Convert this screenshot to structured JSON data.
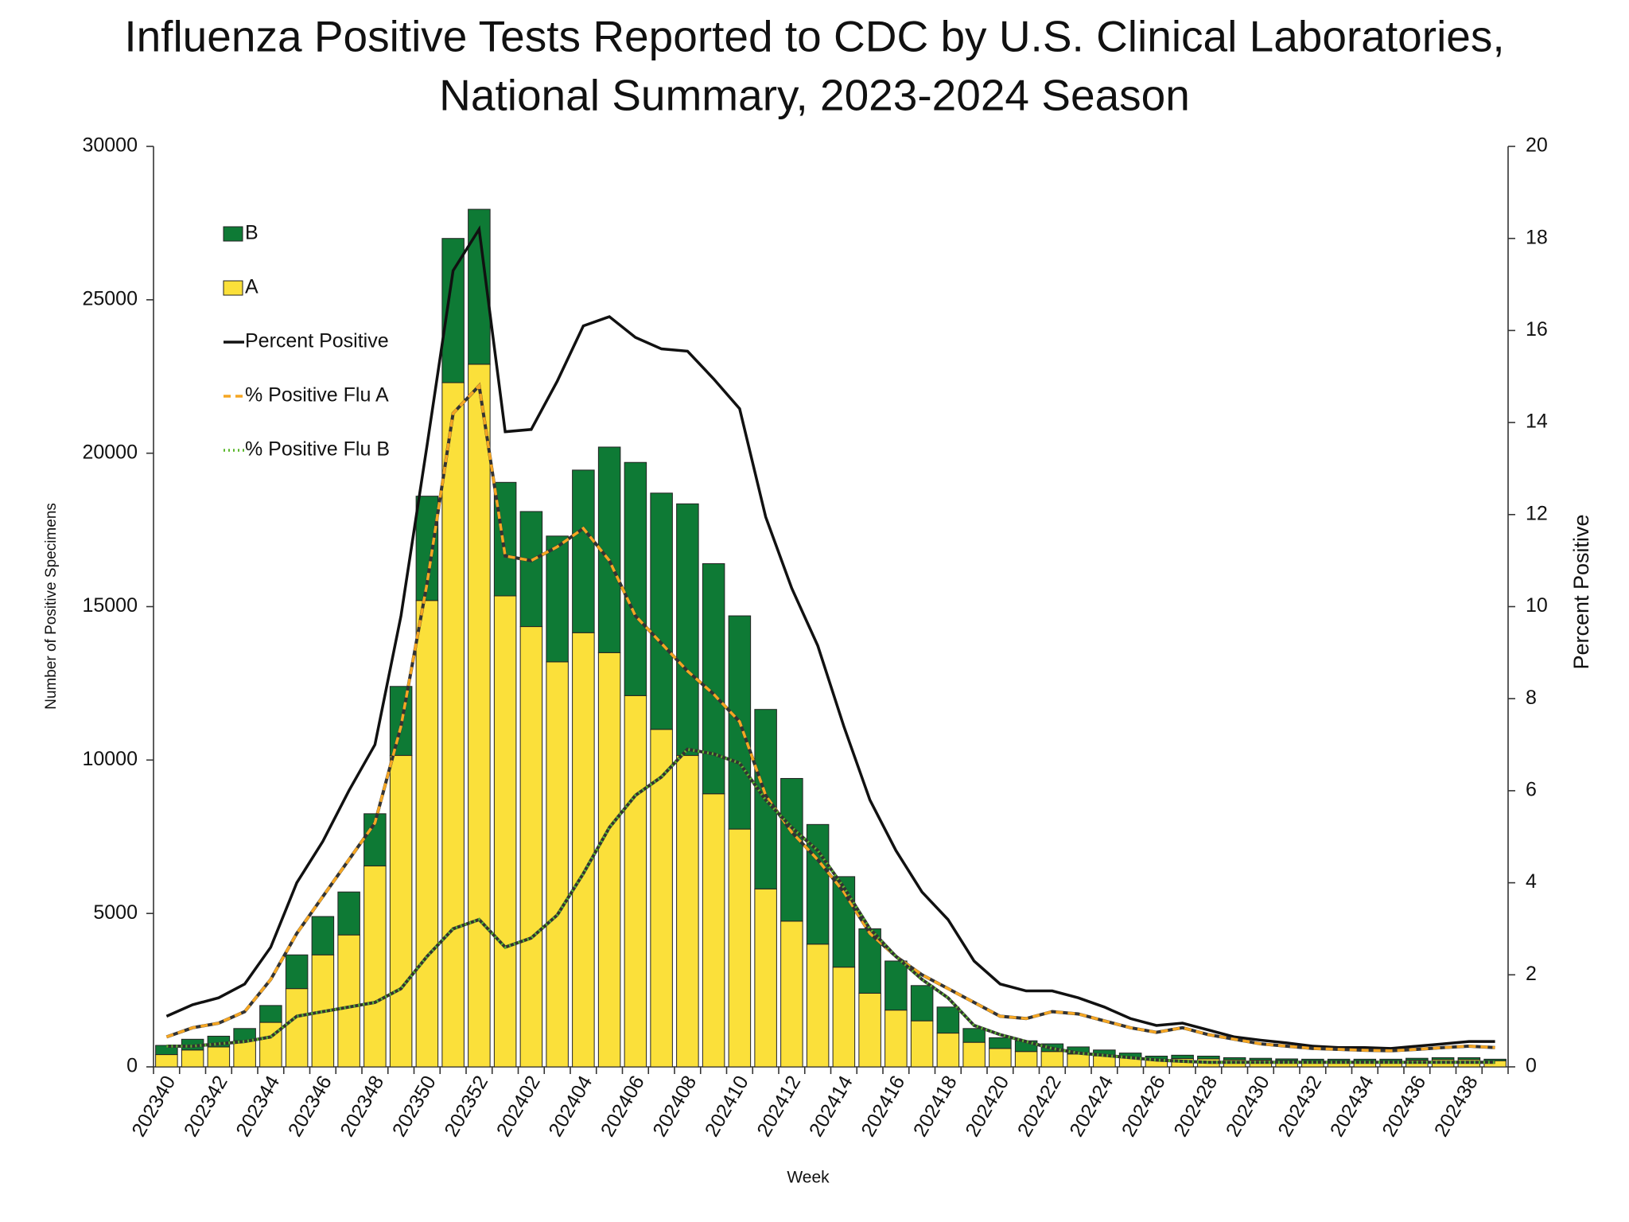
{
  "chart_data": {
    "type": "bar-line",
    "title": [
      "Influenza Positive Tests Reported to CDC by U.S. Clinical Laboratories,",
      "National Summary, 2023-2024 Season"
    ],
    "x_label": "Week",
    "y_label": "Number of Positive Specimens",
    "y2_label": "Percent Positive",
    "categories": [
      "202340",
      null,
      "202342",
      null,
      "202344",
      null,
      "202346",
      null,
      "202348",
      null,
      "202350",
      null,
      "202352",
      null,
      "202402",
      null,
      "202404",
      null,
      "202406",
      null,
      "202408",
      null,
      "202410",
      null,
      "202412",
      null,
      "202414",
      null,
      "202416",
      null,
      "202418",
      null,
      "202420",
      null,
      "202422",
      null,
      "202424",
      null,
      "202426",
      null,
      "202428",
      null,
      "202430",
      null,
      "202432",
      null,
      "202434",
      null,
      "202436",
      null,
      "202438",
      null
    ],
    "series": [
      {
        "name": "B",
        "kind": "bar",
        "color": "#0e7a35",
        "values": [
          300,
          350,
          350,
          400,
          550,
          1100,
          1250,
          1400,
          1700,
          2250,
          3400,
          4700,
          5050,
          3700,
          3750,
          4100,
          5300,
          6700,
          7600,
          7700,
          8200,
          7500,
          6950,
          5850,
          4650,
          3900,
          2950,
          2100,
          1600,
          1150,
          850,
          450,
          350,
          350,
          250,
          230,
          190,
          150,
          100,
          110,
          90,
          70,
          60,
          50,
          50,
          50,
          50,
          50,
          60,
          60,
          60,
          50
        ]
      },
      {
        "name": "A",
        "kind": "bar",
        "color": "#fbe03a",
        "values": [
          400,
          550,
          650,
          850,
          1450,
          2550,
          3650,
          4300,
          6550,
          10150,
          15200,
          22300,
          22900,
          15350,
          14350,
          13200,
          14150,
          13500,
          12100,
          11000,
          10150,
          8900,
          7750,
          5800,
          4750,
          4000,
          3250,
          2400,
          1850,
          1500,
          1100,
          800,
          600,
          500,
          500,
          420,
          360,
          300,
          250,
          270,
          260,
          230,
          220,
          210,
          200,
          200,
          200,
          200,
          220,
          240,
          240,
          200
        ]
      },
      {
        "name": "Percent Positive",
        "kind": "line",
        "axis": "y2",
        "color": "#111111",
        "dash": "none",
        "values": [
          1.1,
          1.35,
          1.5,
          1.8,
          2.6,
          4.0,
          4.9,
          6.0,
          7.0,
          9.8,
          13.5,
          17.3,
          18.2,
          13.8,
          13.85,
          14.9,
          16.1,
          16.3,
          15.85,
          15.6,
          15.55,
          14.95,
          14.3,
          11.95,
          10.4,
          9.15,
          7.4,
          5.8,
          4.7,
          3.8,
          3.2,
          2.3,
          1.8,
          1.65,
          1.65,
          1.5,
          1.3,
          1.05,
          0.9,
          0.95,
          0.8,
          0.65,
          0.58,
          0.52,
          0.45,
          0.42,
          0.42,
          0.4,
          0.45,
          0.5,
          0.55,
          0.55
        ]
      },
      {
        "name": "% Positive Flu A",
        "kind": "line",
        "axis": "y2",
        "color": "#f5a623",
        "dash": "9 6",
        "values": [
          0.65,
          0.85,
          0.95,
          1.2,
          1.9,
          2.9,
          3.7,
          4.5,
          5.3,
          7.4,
          10.5,
          14.2,
          14.8,
          11.1,
          11.0,
          11.3,
          11.7,
          11.0,
          9.8,
          9.2,
          8.6,
          8.1,
          7.5,
          5.9,
          5.1,
          4.5,
          3.8,
          2.9,
          2.4,
          2.0,
          1.7,
          1.4,
          1.1,
          1.05,
          1.2,
          1.15,
          1.0,
          0.85,
          0.75,
          0.85,
          0.7,
          0.6,
          0.5,
          0.45,
          0.4,
          0.38,
          0.36,
          0.35,
          0.38,
          0.42,
          0.45,
          0.42
        ]
      },
      {
        "name": "% Positive Flu B",
        "kind": "line",
        "axis": "y2",
        "color": "#5cb82e",
        "dash": "2 4",
        "values": [
          0.45,
          0.45,
          0.5,
          0.55,
          0.65,
          1.1,
          1.2,
          1.3,
          1.4,
          1.7,
          2.4,
          3.0,
          3.2,
          2.6,
          2.8,
          3.3,
          4.2,
          5.2,
          5.9,
          6.3,
          6.9,
          6.8,
          6.6,
          5.8,
          5.2,
          4.7,
          3.9,
          3.0,
          2.4,
          1.9,
          1.5,
          0.9,
          0.7,
          0.55,
          0.4,
          0.3,
          0.25,
          0.2,
          0.15,
          0.12,
          0.1,
          0.1,
          0.1,
          0.1,
          0.1,
          0.1,
          0.1,
          0.1,
          0.1,
          0.1,
          0.1,
          0.1
        ]
      }
    ],
    "ylim": [
      0,
      30000
    ],
    "yticks": [
      0,
      5000,
      10000,
      15000,
      20000,
      25000,
      30000
    ],
    "y2lim": [
      0,
      20
    ],
    "y2ticks": [
      0,
      2,
      4,
      6,
      8,
      10,
      12,
      14,
      16,
      18,
      20
    ],
    "legend": "upper left",
    "grid": false
  }
}
